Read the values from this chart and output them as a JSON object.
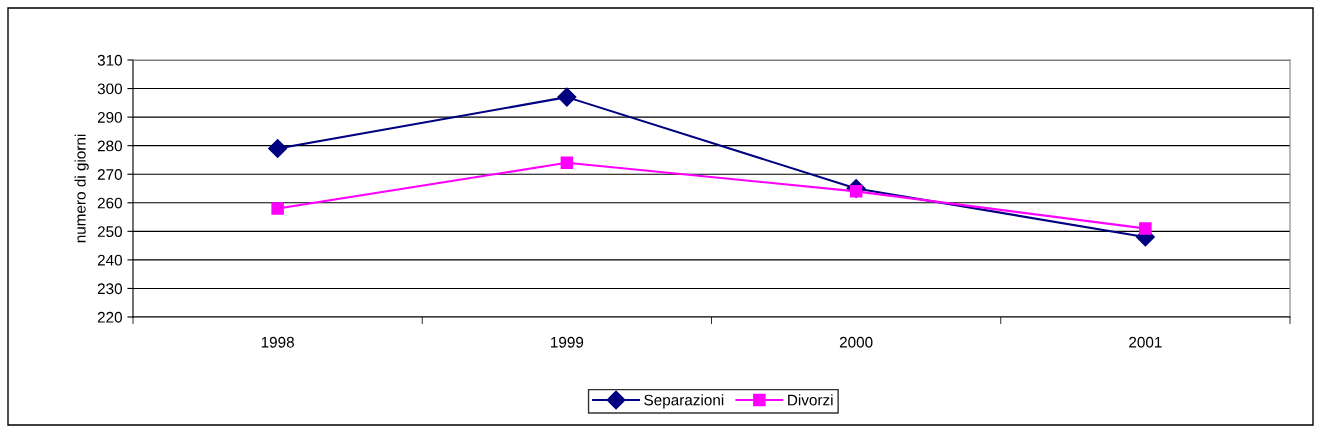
{
  "chart_data": {
    "type": "line",
    "ylabel": "numero di giorni",
    "categories": [
      "1998",
      "1999",
      "2000",
      "2001"
    ],
    "series": [
      {
        "name": "Separazioni",
        "color": "#000080",
        "marker": "diamond",
        "values": [
          279,
          297,
          265,
          248
        ]
      },
      {
        "name": "Divorzi",
        "color": "#ff00ff",
        "marker": "square",
        "values": [
          258,
          274,
          264,
          251
        ]
      }
    ],
    "ylim": [
      220,
      310
    ],
    "yticks": [
      220,
      230,
      240,
      250,
      260,
      270,
      280,
      290,
      300,
      310
    ],
    "grid": "y",
    "legend": "bottom",
    "line_style": "solid"
  }
}
